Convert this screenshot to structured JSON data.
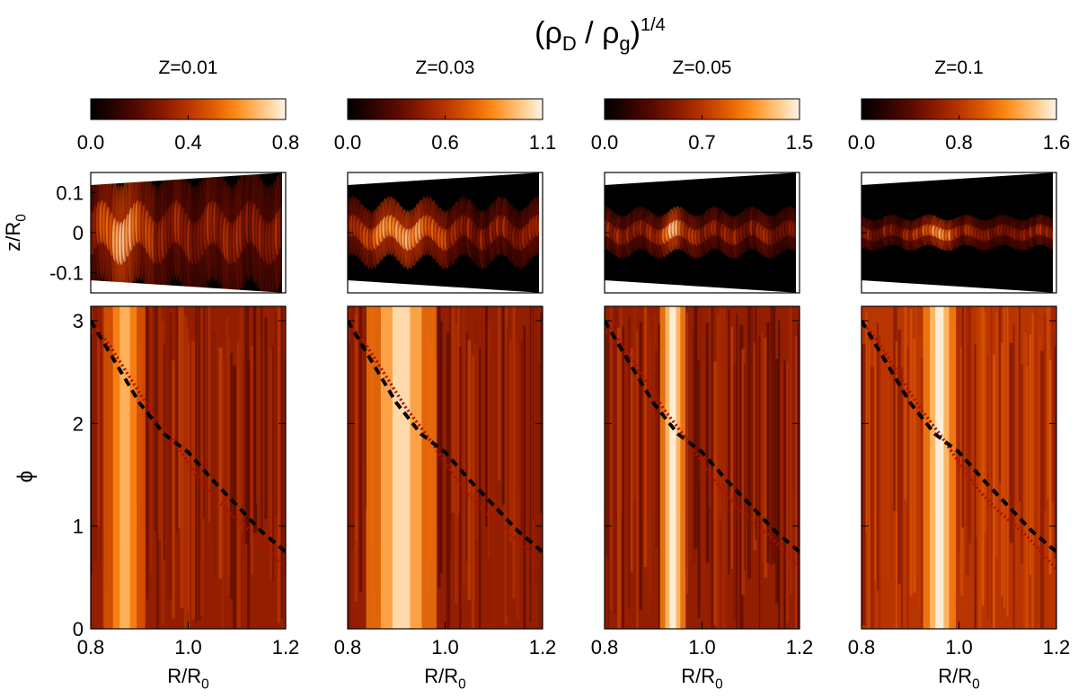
{
  "figure": {
    "title_main": "(ρ",
    "title_sub_d": "D",
    "title_sep": " / ρ",
    "title_sub_g": "g",
    "title_close": ")",
    "title_exp": "1/4"
  },
  "chart_data": {
    "type": "heatmap",
    "shared": {
      "colormap": [
        "#000000",
        "#2b0300",
        "#5a0a00",
        "#8a1a00",
        "#b83400",
        "#e05a00",
        "#ff8c1a",
        "#ffc27a",
        "#fff5e6"
      ],
      "xlabel_top": "",
      "ylabel_top": "z/R",
      "ylabel_top_sub": "0",
      "ylabel_bottom": "ϕ",
      "xlabel_bottom": "R/R",
      "xlabel_bottom_sub": "0",
      "x_ticks": [
        "0.8",
        "1.0",
        "1.2"
      ],
      "xlim": [
        0.8,
        1.2
      ],
      "z_ticks": [
        "0.1",
        "0",
        "-0.1"
      ],
      "zlim": [
        -0.15,
        0.15
      ],
      "phi_ticks": [
        "3",
        "2",
        "1",
        "0"
      ],
      "phi_lim": [
        0,
        3.14
      ],
      "dashed_curve": [
        [
          0.8,
          3.0
        ],
        [
          0.85,
          2.6
        ],
        [
          0.9,
          2.2
        ],
        [
          0.95,
          1.9
        ],
        [
          1.0,
          1.72
        ],
        [
          1.05,
          1.45
        ],
        [
          1.1,
          1.2
        ],
        [
          1.15,
          0.95
        ],
        [
          1.2,
          0.75
        ]
      ],
      "dotted_curve": [
        [
          0.8,
          3.0
        ],
        [
          0.84,
          2.75
        ],
        [
          0.88,
          2.45
        ],
        [
          0.92,
          2.15
        ],
        [
          0.96,
          1.9
        ],
        [
          1.0,
          1.62
        ],
        [
          1.04,
          1.35
        ],
        [
          1.08,
          1.15
        ],
        [
          1.14,
          0.9
        ],
        [
          1.2,
          0.58
        ]
      ]
    },
    "panels": [
      {
        "label": "Z=0.01",
        "cbar_ticks": [
          "0.0",
          "0.4",
          "0.8"
        ],
        "vmax": 0.8,
        "ring_center": 0.87,
        "ring_width": 0.035,
        "layer_thickness": 0.045,
        "ring_brightness": 0.85
      },
      {
        "label": "Z=0.03",
        "cbar_ticks": [
          "0.0",
          "0.6",
          "1.1"
        ],
        "vmax": 1.1,
        "ring_center": 0.91,
        "ring_width": 0.06,
        "layer_thickness": 0.03,
        "ring_brightness": 0.95
      },
      {
        "label": "Z=0.05",
        "cbar_ticks": [
          "0.0",
          "0.7",
          "1.5"
        ],
        "vmax": 1.5,
        "ring_center": 0.94,
        "ring_width": 0.022,
        "layer_thickness": 0.02,
        "ring_brightness": 1.0
      },
      {
        "label": "Z=0.1",
        "cbar_ticks": [
          "0.0",
          "0.8",
          "1.6"
        ],
        "vmax": 1.6,
        "ring_center": 0.96,
        "ring_width": 0.028,
        "layer_thickness": 0.012,
        "ring_brightness": 1.0
      }
    ]
  }
}
